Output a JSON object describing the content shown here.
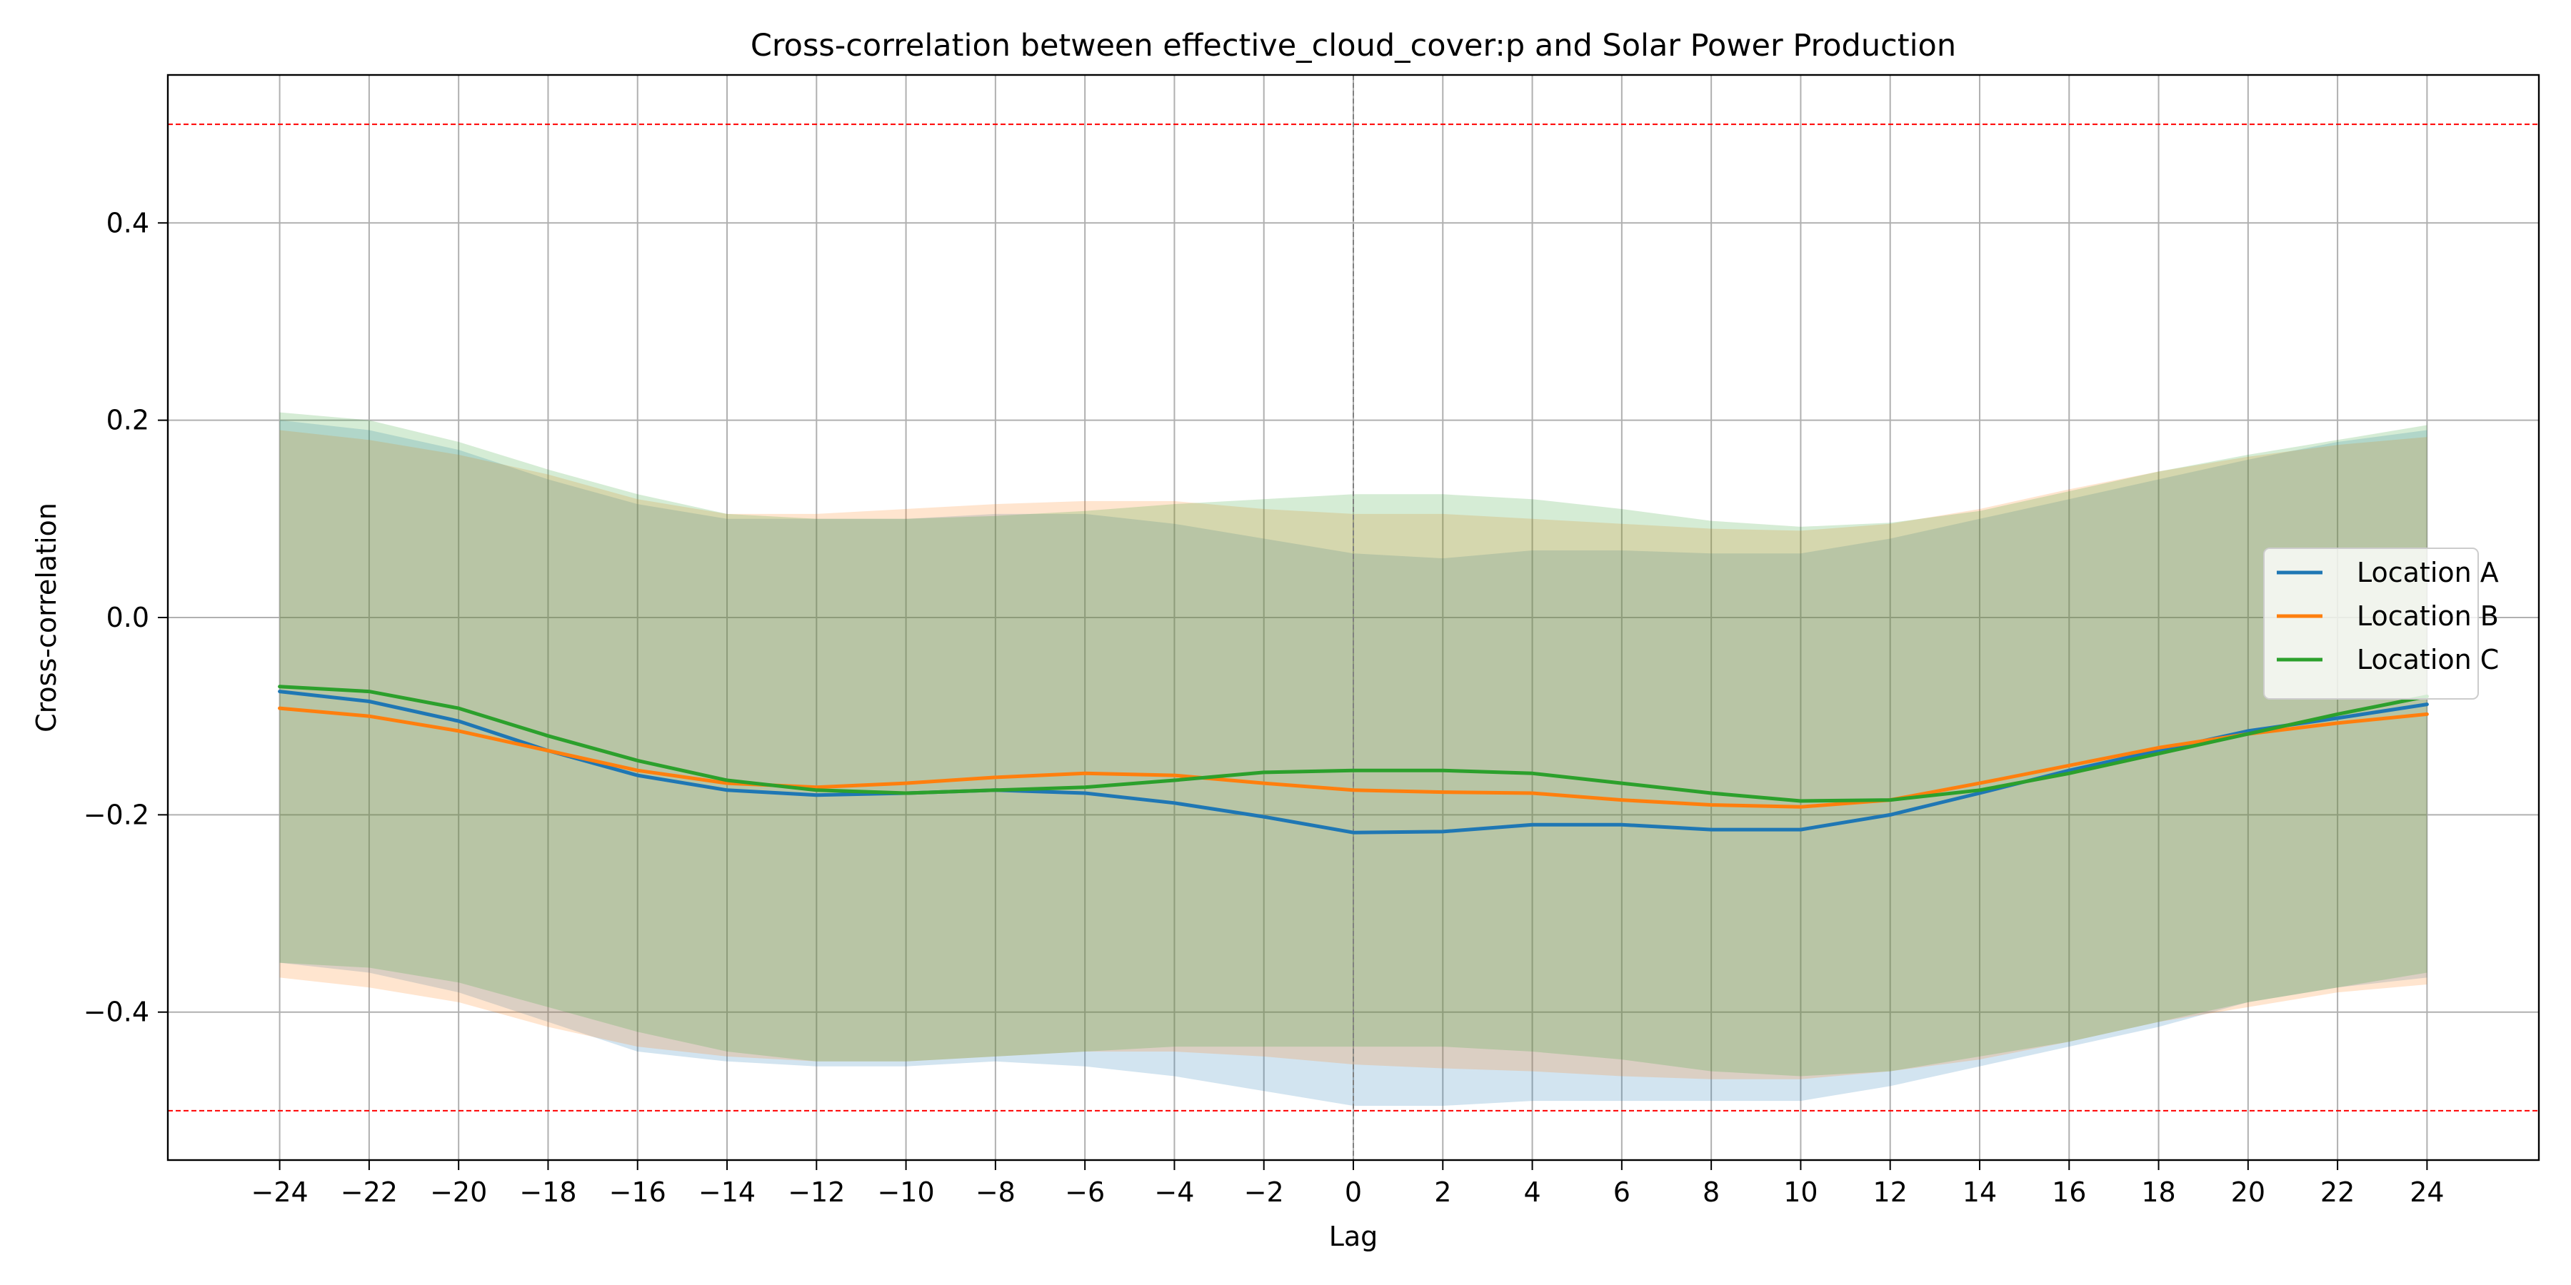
{
  "chart_data": {
    "type": "line",
    "title": "Cross-correlation between effective_cloud_cover:p and Solar Power Production",
    "xlabel": "Lag",
    "ylabel": "Cross-correlation",
    "xlim": [
      -26.5,
      26.5
    ],
    "ylim": [
      -0.55,
      0.55
    ],
    "x_ticks": [
      -24,
      -22,
      -20,
      -18,
      -16,
      -14,
      -12,
      -10,
      -8,
      -6,
      -4,
      -2,
      0,
      2,
      4,
      6,
      8,
      10,
      12,
      14,
      16,
      18,
      20,
      22,
      24
    ],
    "x_tick_labels": [
      "−24",
      "−22",
      "−20",
      "−18",
      "−16",
      "−14",
      "−12",
      "−10",
      "−8",
      "−6",
      "−4",
      "−2",
      "0",
      "2",
      "4",
      "6",
      "8",
      "10",
      "12",
      "14",
      "16",
      "18",
      "20",
      "22",
      "24"
    ],
    "y_ticks": [
      -0.4,
      -0.2,
      0.0,
      0.2,
      0.4
    ],
    "y_tick_labels": [
      "−0.4",
      "−0.2",
      "0.0",
      "0.2",
      "0.4"
    ],
    "grid": true,
    "legend_position": "center-right",
    "reference_lines": [
      {
        "axis": "y",
        "value": 0.5,
        "color": "#ff0000",
        "style": "dashed"
      },
      {
        "axis": "y",
        "value": -0.5,
        "color": "#ff0000",
        "style": "dashed"
      },
      {
        "axis": "x",
        "value": 0,
        "color": "#808080",
        "style": "dashed"
      }
    ],
    "x": [
      -24,
      -22,
      -20,
      -18,
      -16,
      -14,
      -12,
      -10,
      -8,
      -6,
      -4,
      -2,
      0,
      2,
      4,
      6,
      8,
      10,
      12,
      14,
      16,
      18,
      20,
      22,
      24
    ],
    "series": [
      {
        "name": "Location A",
        "color": "#1f77b4",
        "values": [
          -0.075,
          -0.085,
          -0.105,
          -0.135,
          -0.16,
          -0.175,
          -0.18,
          -0.178,
          -0.175,
          -0.178,
          -0.188,
          -0.202,
          -0.218,
          -0.217,
          -0.21,
          -0.21,
          -0.215,
          -0.215,
          -0.2,
          -0.178,
          -0.155,
          -0.135,
          -0.115,
          -0.102,
          -0.088
        ],
        "band_upper": [
          0.2,
          0.19,
          0.17,
          0.14,
          0.115,
          0.1,
          0.1,
          0.1,
          0.105,
          0.105,
          0.095,
          0.08,
          0.065,
          0.06,
          0.068,
          0.068,
          0.065,
          0.065,
          0.08,
          0.1,
          0.12,
          0.14,
          0.16,
          0.178,
          0.19
        ],
        "band_lower": [
          -0.35,
          -0.36,
          -0.38,
          -0.41,
          -0.44,
          -0.45,
          -0.455,
          -0.455,
          -0.45,
          -0.455,
          -0.465,
          -0.48,
          -0.495,
          -0.495,
          -0.49,
          -0.49,
          -0.49,
          -0.49,
          -0.475,
          -0.455,
          -0.435,
          -0.415,
          -0.39,
          -0.375,
          -0.365
        ]
      },
      {
        "name": "Location B",
        "color": "#ff7f0e",
        "values": [
          -0.092,
          -0.1,
          -0.115,
          -0.135,
          -0.155,
          -0.168,
          -0.172,
          -0.168,
          -0.162,
          -0.158,
          -0.16,
          -0.168,
          -0.175,
          -0.177,
          -0.178,
          -0.185,
          -0.19,
          -0.192,
          -0.185,
          -0.168,
          -0.15,
          -0.132,
          -0.118,
          -0.107,
          -0.098
        ],
        "band_upper": [
          0.19,
          0.18,
          0.165,
          0.145,
          0.12,
          0.105,
          0.105,
          0.11,
          0.115,
          0.118,
          0.118,
          0.11,
          0.105,
          0.105,
          0.1,
          0.095,
          0.09,
          0.088,
          0.095,
          0.11,
          0.13,
          0.148,
          0.163,
          0.175,
          0.183
        ],
        "band_lower": [
          -0.365,
          -0.375,
          -0.39,
          -0.415,
          -0.435,
          -0.445,
          -0.45,
          -0.45,
          -0.445,
          -0.44,
          -0.44,
          -0.445,
          -0.453,
          -0.457,
          -0.46,
          -0.465,
          -0.468,
          -0.468,
          -0.46,
          -0.448,
          -0.43,
          -0.41,
          -0.395,
          -0.38,
          -0.372
        ]
      },
      {
        "name": "Location C",
        "color": "#2ca02c",
        "values": [
          -0.07,
          -0.075,
          -0.092,
          -0.12,
          -0.145,
          -0.165,
          -0.175,
          -0.178,
          -0.175,
          -0.172,
          -0.165,
          -0.157,
          -0.155,
          -0.155,
          -0.158,
          -0.168,
          -0.178,
          -0.186,
          -0.185,
          -0.175,
          -0.158,
          -0.138,
          -0.118,
          -0.098,
          -0.08
        ],
        "band_upper": [
          0.208,
          0.2,
          0.178,
          0.15,
          0.125,
          0.105,
          0.1,
          0.1,
          0.103,
          0.108,
          0.115,
          0.12,
          0.125,
          0.125,
          0.12,
          0.11,
          0.098,
          0.092,
          0.096,
          0.108,
          0.128,
          0.148,
          0.165,
          0.18,
          0.195
        ],
        "band_lower": [
          -0.35,
          -0.355,
          -0.37,
          -0.395,
          -0.42,
          -0.44,
          -0.45,
          -0.45,
          -0.445,
          -0.44,
          -0.435,
          -0.435,
          -0.435,
          -0.435,
          -0.44,
          -0.448,
          -0.46,
          -0.465,
          -0.46,
          -0.445,
          -0.43,
          -0.41,
          -0.39,
          -0.375,
          -0.36
        ]
      }
    ]
  }
}
